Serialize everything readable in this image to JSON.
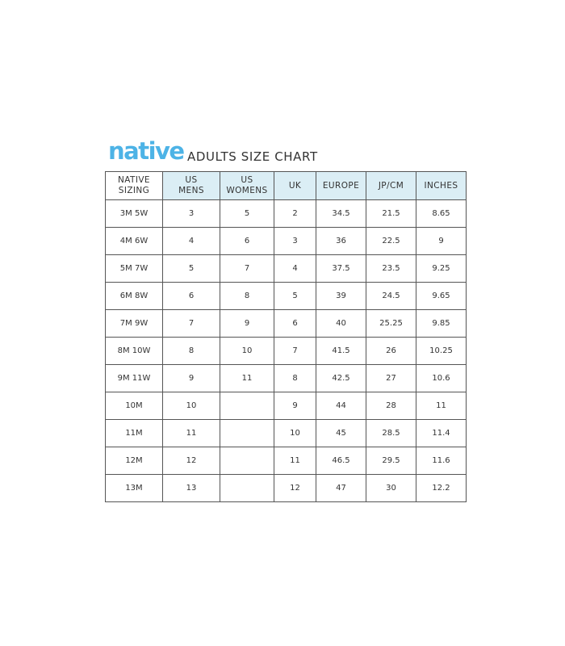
{
  "brand": {
    "logo_text": "native",
    "color": "#4db3e6"
  },
  "title": "ADULTS SIZE CHART",
  "table": {
    "header_fill": "#dbeef5",
    "columns": [
      [
        "NATIVE",
        "SIZING"
      ],
      [
        "US",
        "MENS"
      ],
      [
        "US",
        "WOMENS"
      ],
      [
        "UK"
      ],
      [
        "EUROPE"
      ],
      [
        "JP/CM"
      ],
      [
        "INCHES"
      ]
    ],
    "rows": [
      [
        "3M 5W",
        "3",
        "5",
        "2",
        "34.5",
        "21.5",
        "8.65"
      ],
      [
        "4M 6W",
        "4",
        "6",
        "3",
        "36",
        "22.5",
        "9"
      ],
      [
        "5M 7W",
        "5",
        "7",
        "4",
        "37.5",
        "23.5",
        "9.25"
      ],
      [
        "6M 8W",
        "6",
        "8",
        "5",
        "39",
        "24.5",
        "9.65"
      ],
      [
        "7M 9W",
        "7",
        "9",
        "6",
        "40",
        "25.25",
        "9.85"
      ],
      [
        "8M 10W",
        "8",
        "10",
        "7",
        "41.5",
        "26",
        "10.25"
      ],
      [
        "9M 11W",
        "9",
        "11",
        "8",
        "42.5",
        "27",
        "10.6"
      ],
      [
        "10M",
        "10",
        "",
        "9",
        "44",
        "28",
        "11"
      ],
      [
        "11M",
        "11",
        "",
        "10",
        "45",
        "28.5",
        "11.4"
      ],
      [
        "12M",
        "12",
        "",
        "11",
        "46.5",
        "29.5",
        "11.6"
      ],
      [
        "13M",
        "13",
        "",
        "12",
        "47",
        "30",
        "12.2"
      ]
    ]
  }
}
